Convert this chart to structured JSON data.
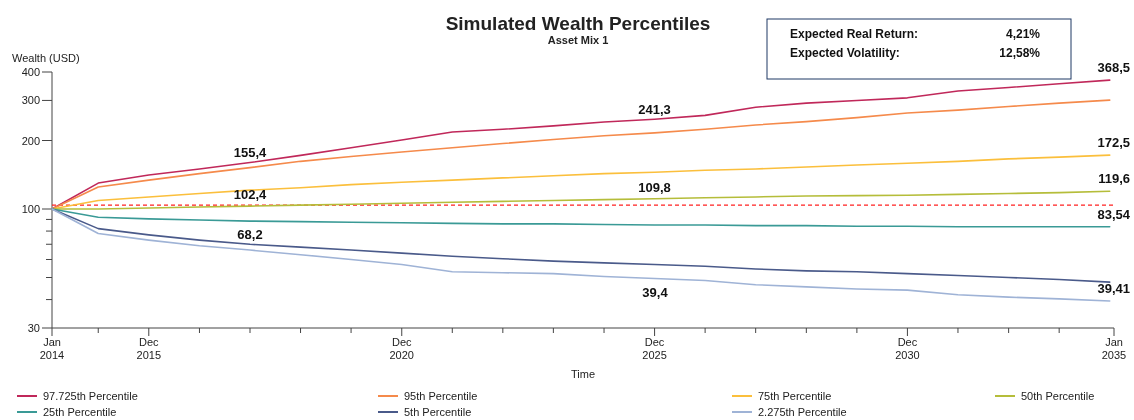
{
  "chart_data": {
    "type": "line",
    "title": "Simulated Wealth Percentiles",
    "subtitle": "Asset Mix 1",
    "xlabel": "Time",
    "ylabel": "Wealth (USD)",
    "x": [
      "2014-01",
      "2014-12",
      "2015-12",
      "2016-12",
      "2017-12",
      "2018-12",
      "2019-12",
      "2020-12",
      "2021-12",
      "2022-12",
      "2023-12",
      "2024-12",
      "2025-12",
      "2026-12",
      "2027-12",
      "2028-12",
      "2029-12",
      "2030-12",
      "2031-12",
      "2032-12",
      "2033-12",
      "2034-12"
    ],
    "series": [
      {
        "name": "97.725th Percentile",
        "color": "#c0285a",
        "values": [
          100,
          130,
          141,
          150,
          160,
          172,
          186,
          201,
          218,
          224,
          232,
          241,
          248,
          258,
          280,
          292,
          300,
          308,
          330,
          342,
          355,
          368.5
        ]
      },
      {
        "name": "95th Percentile",
        "color": "#f58a4b",
        "values": [
          100,
          125,
          134,
          143,
          152,
          162,
          170,
          178,
          186,
          194,
          202,
          210,
          216,
          224,
          234,
          242,
          252,
          264,
          272,
          282,
          292,
          301
        ]
      },
      {
        "name": "75th Percentile",
        "color": "#fbbf3c",
        "values": [
          100,
          109,
          113,
          117,
          121,
          124,
          128,
          131,
          134,
          137,
          140,
          143,
          145,
          148,
          150,
          153,
          156,
          159,
          162,
          166,
          169,
          172.5
        ]
      },
      {
        "name": "50th Percentile",
        "color": "#b5bd3a",
        "values": [
          100,
          100,
          101,
          102,
          103,
          104,
          105,
          106,
          107,
          108,
          109,
          110,
          111,
          112,
          113,
          114,
          114.5,
          115,
          116,
          117,
          118,
          119.6
        ]
      },
      {
        "name": "25th Percentile",
        "color": "#3a9a96",
        "values": [
          100,
          92,
          90.5,
          89.5,
          88.5,
          88,
          87.5,
          87,
          86.5,
          86,
          86,
          85.5,
          85,
          85,
          84.5,
          84.5,
          84,
          84,
          83.6,
          83.6,
          83.6,
          83.54
        ]
      },
      {
        "name": "5th Percentile",
        "color": "#4a5a8a",
        "values": [
          100,
          82,
          77,
          73,
          70,
          68,
          66,
          64,
          62,
          60.5,
          59,
          58,
          57,
          56,
          54.5,
          53.5,
          53,
          52,
          51,
          50,
          49,
          47.7
        ]
      },
      {
        "name": "2.275th Percentile",
        "color": "#9fb3d6",
        "values": [
          100,
          78,
          73,
          69,
          66,
          63,
          60,
          57,
          53,
          52.5,
          52,
          50.5,
          49.5,
          48.5,
          46.5,
          45.5,
          44.5,
          44,
          42,
          41,
          40.3,
          39.41
        ]
      }
    ],
    "log": true,
    "grid": false,
    "legend": "bottom",
    "line_style": "solid",
    "xlim": [
      "2014-01",
      "2035-01"
    ],
    "xticks": [
      {
        "value": "2014-01",
        "label": "Jan\n2014"
      },
      {
        "value": "2014-12",
        "label": null
      },
      {
        "value": "2015-12",
        "label": "Dec\n2015"
      },
      {
        "value": "2016-12",
        "label": null
      },
      {
        "value": "2017-12",
        "label": null
      },
      {
        "value": "2018-12",
        "label": null
      },
      {
        "value": "2019-12",
        "label": null
      },
      {
        "value": "2020-12",
        "label": "Dec\n2020"
      },
      {
        "value": "2021-12",
        "label": null
      },
      {
        "value": "2022-12",
        "label": null
      },
      {
        "value": "2023-12",
        "label": null
      },
      {
        "value": "2024-12",
        "label": null
      },
      {
        "value": "2025-12",
        "label": "Dec\n2025"
      },
      {
        "value": "2026-12",
        "label": null
      },
      {
        "value": "2027-12",
        "label": null
      },
      {
        "value": "2028-12",
        "label": null
      },
      {
        "value": "2029-12",
        "label": null
      },
      {
        "value": "2030-12",
        "label": "Dec\n2030"
      },
      {
        "value": "2031-12",
        "label": null
      },
      {
        "value": "2032-12",
        "label": null
      },
      {
        "value": "2033-12",
        "label": null
      },
      {
        "value": "2035-01",
        "label": "Jan\n2035"
      }
    ],
    "ylim": [
      30,
      400
    ],
    "yticks": [
      30,
      {
        "value": 40,
        "label": null
      },
      {
        "value": 50,
        "label": null
      },
      {
        "value": 60,
        "label": null
      },
      {
        "value": 70,
        "label": null
      },
      {
        "value": 80,
        "label": null
      },
      {
        "value": 90,
        "label": null
      },
      100,
      200,
      300,
      400
    ],
    "ref_lines": [
      {
        "axis": "y",
        "value": 104,
        "color": "#ff2020",
        "line_style": "dashed"
      }
    ],
    "annotations": [
      "Expected Real Return:",
      "4,21%",
      "Expected Volatility:",
      "12,58%",
      {
        "text": "155,4",
        "x": "2017-12",
        "y": 155.4
      },
      {
        "text": "102,4",
        "x": "2017-12",
        "y": 102.4
      },
      {
        "text": "68,2",
        "x": "2017-12",
        "y": 68.2
      },
      {
        "text": "241,3",
        "x": "2025-12",
        "y": 241.3
      },
      {
        "text": "109,8",
        "x": "2025-12",
        "y": 109.8
      },
      "39,4",
      {
        "text": "368,5",
        "x": "2034-12",
        "y": 368.5
      },
      {
        "text": "172,5",
        "x": "2034-12",
        "y": 172.5
      },
      {
        "text": "119,6",
        "x": "2034-12",
        "y": 119.6
      },
      {
        "text": "83,54",
        "x": "2034-12",
        "y": 83.54
      },
      {
        "text": "39,41",
        "x": "2034-12",
        "y": 39.41
      }
    ]
  }
}
